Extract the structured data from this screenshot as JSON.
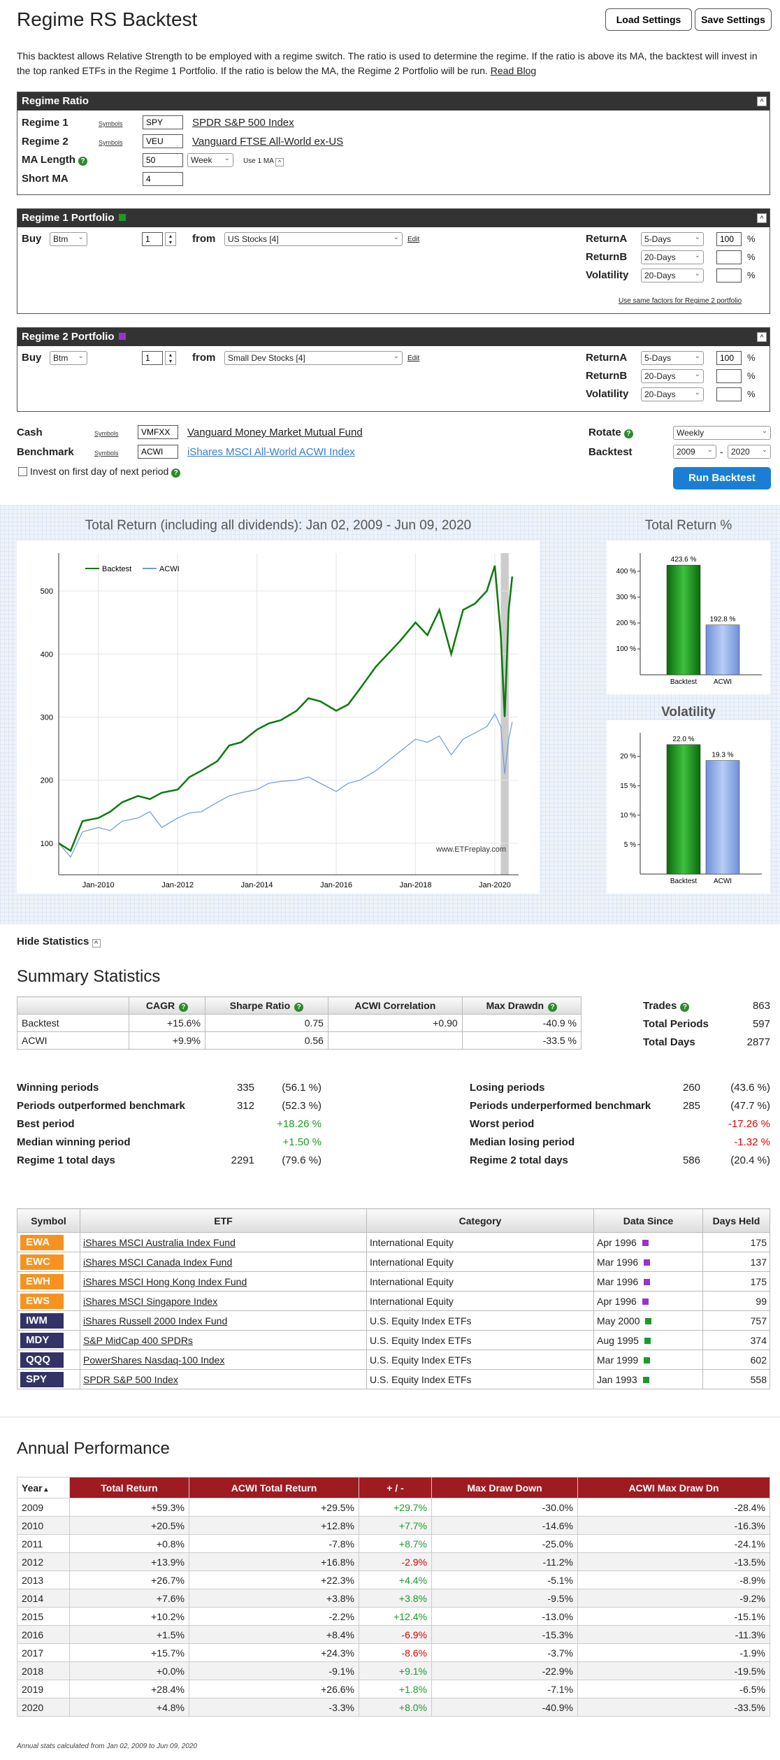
{
  "title": "Regime RS Backtest",
  "buttons": {
    "load": "Load Settings",
    "save": "Save Settings",
    "run": "Run Backtest"
  },
  "intro": "This backtest allows Relative Strength to be employed with a regime switch. The ratio is used to determine the regime. If the ratio is above its MA, the backtest will invest in the top ranked ETFs in the Regime 1 Portfolio. If the ratio is below the MA, the Regime 2 Portfolio will be run.",
  "intro_link": "Read Blog",
  "regime_ratio": {
    "header": "Regime Ratio",
    "symbols_label": "Symbols",
    "regime1_label": "Regime 1",
    "regime1_value": "SPY",
    "regime1_name": "SPDR S&P 500 Index",
    "regime2_label": "Regime 2",
    "regime2_value": "VEU",
    "regime2_name": "Vanguard FTSE All-World ex-US",
    "ma_length_label": "MA Length",
    "ma_length_value": "50",
    "ma_period": "Week",
    "use1ma": "Use 1 MA",
    "short_ma_label": "Short MA",
    "short_ma_value": "4"
  },
  "portfolios": [
    {
      "header": "Regime 1 Portfolio",
      "buy_label": "Buy",
      "buy_mode": "Btm",
      "count": "1",
      "from_label": "from",
      "universe": "US Stocks [4]",
      "edit": "Edit",
      "returnA_label": "ReturnA",
      "returnA_period": "5-Days",
      "returnA_weight": "100",
      "returnB_label": "ReturnB",
      "returnB_period": "20-Days",
      "returnB_weight": "",
      "vol_label": "Volatility",
      "vol_period": "20-Days",
      "vol_weight": "",
      "pct": "%",
      "same_factors": "Use same factors for Regime 2 portfolio"
    },
    {
      "header": "Regime 2 Portfolio",
      "buy_label": "Buy",
      "buy_mode": "Btm",
      "count": "1",
      "from_label": "from",
      "universe": "Small Dev Stocks [4]",
      "edit": "Edit",
      "returnA_label": "ReturnA",
      "returnA_period": "5-Days",
      "returnA_weight": "100",
      "returnB_label": "ReturnB",
      "returnB_period": "20-Days",
      "returnB_weight": "",
      "vol_label": "Volatility",
      "vol_period": "20-Days",
      "vol_weight": "",
      "pct": "%"
    }
  ],
  "cash": {
    "label": "Cash",
    "symbols_label": "Symbols",
    "value": "VMFXX",
    "name": "Vanguard Money Market Mutual Fund"
  },
  "benchmark": {
    "label": "Benchmark",
    "symbols_label": "Symbols",
    "value": "ACWI",
    "name": "iShares MSCI All-World ACWI Index"
  },
  "invest_first_day": "Invest on first day of next period",
  "rotate": {
    "label": "Rotate",
    "value": "Weekly"
  },
  "backtest": {
    "label": "Backtest",
    "from": "2009",
    "to": "2020",
    "dash": "-"
  },
  "colors": {
    "backtest": "#0a7a0a",
    "acwi": "#6a9be0",
    "header": "#333333",
    "annual_header": "#9e1b22"
  },
  "chart_data": [
    {
      "type": "line",
      "title": "Total Return (including all dividends): Jan 02, 2009 - Jun 09, 2020",
      "series": [
        {
          "name": "Backtest",
          "x": [
            2009.0,
            2009.3,
            2009.6,
            2010.0,
            2010.3,
            2010.6,
            2011.0,
            2011.3,
            2011.6,
            2012.0,
            2012.3,
            2012.6,
            2013.0,
            2013.3,
            2013.6,
            2014.0,
            2014.3,
            2014.6,
            2015.0,
            2015.3,
            2015.6,
            2016.0,
            2016.3,
            2016.6,
            2017.0,
            2017.3,
            2017.6,
            2018.0,
            2018.3,
            2018.6,
            2018.9,
            2019.2,
            2019.5,
            2019.8,
            2020.0,
            2020.15,
            2020.25,
            2020.35,
            2020.44
          ],
          "y": [
            100,
            88,
            135,
            140,
            150,
            165,
            175,
            170,
            180,
            185,
            205,
            215,
            230,
            255,
            260,
            280,
            290,
            295,
            310,
            330,
            325,
            310,
            320,
            345,
            380,
            400,
            420,
            450,
            430,
            470,
            400,
            470,
            480,
            500,
            540,
            430,
            300,
            470,
            523
          ]
        },
        {
          "name": "ACWI",
          "x": [
            2009.0,
            2009.3,
            2009.6,
            2010.0,
            2010.3,
            2010.6,
            2011.0,
            2011.3,
            2011.6,
            2012.0,
            2012.3,
            2012.6,
            2013.0,
            2013.3,
            2013.6,
            2014.0,
            2014.3,
            2014.6,
            2015.0,
            2015.3,
            2015.6,
            2016.0,
            2016.3,
            2016.6,
            2017.0,
            2017.3,
            2017.6,
            2018.0,
            2018.3,
            2018.6,
            2018.9,
            2019.2,
            2019.5,
            2019.8,
            2020.0,
            2020.15,
            2020.25,
            2020.35,
            2020.44
          ],
          "y": [
            100,
            78,
            118,
            125,
            120,
            135,
            140,
            150,
            125,
            140,
            148,
            150,
            165,
            175,
            180,
            185,
            195,
            198,
            200,
            205,
            195,
            182,
            195,
            200,
            215,
            230,
            245,
            265,
            260,
            270,
            240,
            265,
            275,
            285,
            305,
            285,
            210,
            265,
            292
          ]
        }
      ],
      "x_ticks": [
        "Jan-2010",
        "Jan-2012",
        "Jan-2014",
        "Jan-2016",
        "Jan-2018",
        "Jan-2020"
      ],
      "x_tick_values": [
        2010,
        2012,
        2014,
        2016,
        2018,
        2020
      ],
      "y_ticks": [
        100,
        200,
        300,
        400,
        500
      ],
      "ylim": [
        50,
        560
      ],
      "xlim": [
        2009.0,
        2020.6
      ],
      "watermark": "www.ETFreplay.com",
      "legend": "top-left"
    },
    {
      "type": "bar",
      "title": "Total Return %",
      "categories": [
        "Backtest",
        "ACWI"
      ],
      "values": [
        423.6,
        192.8
      ],
      "labels": [
        "423.6 %",
        "192.8 %"
      ],
      "y_ticks": [
        "100 %",
        "200 %",
        "300 %",
        "400 %"
      ],
      "ylim": [
        0,
        470
      ]
    },
    {
      "type": "bar",
      "title": "Volatility",
      "categories": [
        "Backtest",
        "ACWI"
      ],
      "values": [
        22.0,
        19.3
      ],
      "labels": [
        "22.0 %",
        "19.3 %"
      ],
      "y_ticks": [
        "5 %",
        "10 %",
        "15 %",
        "20 %"
      ],
      "ylim": [
        0,
        24
      ]
    }
  ],
  "hide_stats": "Hide Statistics",
  "summary": {
    "title": "Summary Statistics",
    "headers": [
      "",
      "CAGR",
      "Sharpe Ratio",
      "ACWI Correlation",
      "Max Drawdn"
    ],
    "rows": [
      [
        "Backtest",
        "+15.6%",
        "0.75",
        "+0.90",
        "-40.9 %"
      ],
      [
        "ACWI",
        "+9.9%",
        "0.56",
        "",
        "-33.5 %"
      ]
    ],
    "side": [
      [
        "Trades",
        "863"
      ],
      [
        "Total Periods",
        "597"
      ],
      [
        "Total Days",
        "2877"
      ]
    ]
  },
  "period_stats": {
    "left": [
      {
        "label": "Winning periods",
        "v1": "335",
        "v2": "(56.1 %)",
        "cls": ""
      },
      {
        "label": "Periods outperformed benchmark",
        "v1": "312",
        "v2": "(52.3 %)",
        "cls": ""
      },
      {
        "label": "Best period",
        "v1": "",
        "v2": "+18.26 %",
        "cls": "pos"
      },
      {
        "label": "Median winning period",
        "v1": "",
        "v2": "+1.50 %",
        "cls": "pos"
      },
      {
        "label": "Regime 1 total days",
        "v1": "2291",
        "v2": "(79.6 %)",
        "cls": ""
      }
    ],
    "right": [
      {
        "label": "Losing periods",
        "v1": "260",
        "v2": "(43.6 %)",
        "cls": ""
      },
      {
        "label": "Periods underperformed benchmark",
        "v1": "285",
        "v2": "(47.7 %)",
        "cls": ""
      },
      {
        "label": "Worst period",
        "v1": "",
        "v2": "-17.26 %",
        "cls": "neg"
      },
      {
        "label": "Median losing period",
        "v1": "",
        "v2": "-1.32 %",
        "cls": "neg"
      },
      {
        "label": "Regime 2 total days",
        "v1": "586",
        "v2": "(20.4 %)",
        "cls": ""
      }
    ]
  },
  "etf_table": {
    "headers": [
      "Symbol",
      "ETF",
      "Category",
      "Data Since",
      "Days Held"
    ],
    "rows": [
      {
        "symbol": "EWA",
        "name": "iShares MSCI Australia Index Fund",
        "category": "International Equity",
        "since": "Apr 1996",
        "held": "175",
        "tag": "orange",
        "regime": "purple"
      },
      {
        "symbol": "EWC",
        "name": "iShares MSCI Canada Index Fund",
        "category": "International Equity",
        "since": "Mar 1996",
        "held": "137",
        "tag": "orange",
        "regime": "purple"
      },
      {
        "symbol": "EWH",
        "name": "iShares MSCI Hong Kong Index Fund",
        "category": "International Equity",
        "since": "Mar 1996",
        "held": "175",
        "tag": "orange",
        "regime": "purple"
      },
      {
        "symbol": "EWS",
        "name": "iShares MSCI Singapore Index",
        "category": "International Equity",
        "since": "Apr 1996",
        "held": "99",
        "tag": "orange",
        "regime": "purple"
      },
      {
        "symbol": "IWM",
        "name": "iShares Russell 2000 Index Fund",
        "category": "U.S. Equity Index ETFs",
        "since": "May 2000",
        "held": "757",
        "tag": "navy",
        "regime": "green"
      },
      {
        "symbol": "MDY",
        "name": "S&P MidCap 400 SPDRs",
        "category": "U.S. Equity Index ETFs",
        "since": "Aug 1995",
        "held": "374",
        "tag": "navy",
        "regime": "green"
      },
      {
        "symbol": "QQQ",
        "name": "PowerShares Nasdaq-100 Index",
        "category": "U.S. Equity Index ETFs",
        "since": "Mar 1999",
        "held": "602",
        "tag": "navy",
        "regime": "green"
      },
      {
        "symbol": "SPY",
        "name": "SPDR S&P 500 Index",
        "category": "U.S. Equity Index ETFs",
        "since": "Jan 1993",
        "held": "558",
        "tag": "navy",
        "regime": "green"
      }
    ]
  },
  "annual": {
    "title": "Annual Performance",
    "headers": [
      "Year",
      "Total Return",
      "ACWI Total Return",
      "+ / -",
      "Max Draw Down",
      "ACWI Max Draw Dn"
    ],
    "rows": [
      [
        "2009",
        "+59.3%",
        "+29.5%",
        "+29.7%",
        "-30.0%",
        "-28.4%"
      ],
      [
        "2010",
        "+20.5%",
        "+12.8%",
        "+7.7%",
        "-14.6%",
        "-16.3%"
      ],
      [
        "2011",
        "+0.8%",
        "-7.8%",
        "+8.7%",
        "-25.0%",
        "-24.1%"
      ],
      [
        "2012",
        "+13.9%",
        "+16.8%",
        "-2.9%",
        "-11.2%",
        "-13.5%"
      ],
      [
        "2013",
        "+26.7%",
        "+22.3%",
        "+4.4%",
        "-5.1%",
        "-8.9%"
      ],
      [
        "2014",
        "+7.6%",
        "+3.8%",
        "+3.8%",
        "-9.5%",
        "-9.2%"
      ],
      [
        "2015",
        "+10.2%",
        "-2.2%",
        "+12.4%",
        "-13.0%",
        "-15.1%"
      ],
      [
        "2016",
        "+1.5%",
        "+8.4%",
        "-6.9%",
        "-15.3%",
        "-11.3%"
      ],
      [
        "2017",
        "+15.7%",
        "+24.3%",
        "-8.6%",
        "-3.7%",
        "-1.9%"
      ],
      [
        "2018",
        "+0.0%",
        "-9.1%",
        "+9.1%",
        "-22.9%",
        "-19.5%"
      ],
      [
        "2019",
        "+28.4%",
        "+26.6%",
        "+1.8%",
        "-7.1%",
        "-6.5%"
      ],
      [
        "2020",
        "+4.8%",
        "-3.3%",
        "+8.0%",
        "-40.9%",
        "-33.5%"
      ]
    ],
    "footnote": "Annual stats calculated from Jan 02, 2009 to Jun 09, 2020"
  }
}
